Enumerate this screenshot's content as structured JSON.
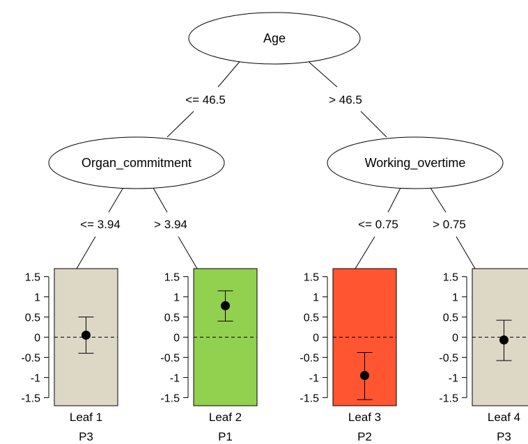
{
  "root": {
    "label": "Age"
  },
  "splits": {
    "root_left": "<= 46.5",
    "root_right": "> 46.5",
    "left_left": "<= 3.94",
    "left_right": "> 3.94",
    "right_left": "<= 0.75",
    "right_right": "> 0.75"
  },
  "inner_nodes": [
    {
      "label": "Organ_commitment"
    },
    {
      "label": "Working_overtime"
    }
  ],
  "axis": {
    "ylim": [
      -1.7,
      1.7
    ],
    "ticks": [
      1.5,
      1,
      0.5,
      0,
      -0.5,
      -1,
      -1.5
    ],
    "tick_labels": [
      "1.5",
      "1",
      "0.5",
      "0",
      "-0.5",
      "-1",
      "-1.5"
    ]
  },
  "leaves": [
    {
      "name": "Leaf 1",
      "profile": "P3",
      "color": "#DDD8C6",
      "estimate": 0.05,
      "lower": -0.4,
      "upper": 0.5
    },
    {
      "name": "Leaf 2",
      "profile": "P1",
      "color": "#92D050",
      "estimate": 0.78,
      "lower": 0.4,
      "upper": 1.15
    },
    {
      "name": "Leaf 3",
      "profile": "P2",
      "color": "#FF5530",
      "estimate": -0.95,
      "lower": -1.55,
      "upper": -0.38
    },
    {
      "name": "Leaf 4",
      "profile": "P3",
      "color": "#DDD8C6",
      "estimate": -0.07,
      "lower": -0.58,
      "upper": 0.42
    }
  ]
}
